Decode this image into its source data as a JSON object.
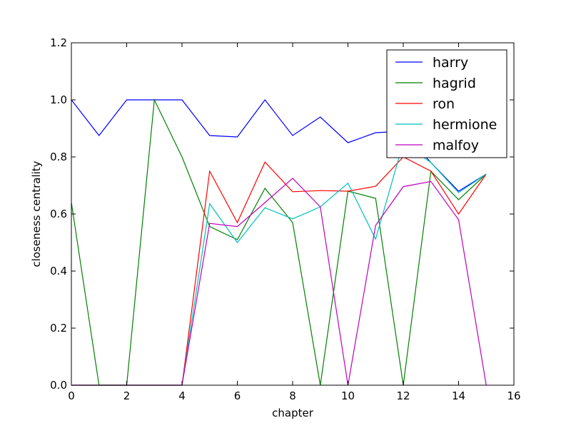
{
  "chart_data": {
    "type": "line",
    "xlabel": "chapter",
    "ylabel": "closeness centrality",
    "xlim": [
      0,
      16
    ],
    "ylim": [
      0,
      1.2
    ],
    "xticks": [
      0,
      2,
      4,
      6,
      8,
      10,
      12,
      14,
      16
    ],
    "yticks": [
      0.0,
      0.2,
      0.4,
      0.6,
      0.8,
      1.0,
      1.2
    ],
    "grid": false,
    "legend_position": "top-right",
    "x": [
      0,
      1,
      2,
      3,
      4,
      5,
      6,
      7,
      8,
      9,
      10,
      11,
      12,
      13,
      14,
      15
    ],
    "series": [
      {
        "name": "harry",
        "color": "#0000ff",
        "values": [
          1.0,
          0.875,
          1.0,
          1.0,
          1.0,
          0.875,
          0.87,
          1.0,
          0.875,
          0.94,
          0.85,
          0.885,
          0.89,
          0.78,
          0.68,
          0.74
        ]
      },
      {
        "name": "hagrid",
        "color": "#008000",
        "values": [
          0.64,
          0.0,
          0.0,
          1.0,
          0.8,
          0.556,
          0.51,
          0.69,
          0.57,
          0.0,
          0.68,
          0.655,
          0.0,
          0.75,
          0.65,
          0.74
        ]
      },
      {
        "name": "ron",
        "color": "#ff0000",
        "values": [
          0.0,
          0.0,
          0.0,
          0.0,
          0.0,
          0.75,
          0.57,
          0.782,
          0.678,
          0.682,
          0.68,
          0.697,
          0.8,
          0.75,
          0.6,
          0.74
        ]
      },
      {
        "name": "hermione",
        "color": "#00bfbf",
        "values": [
          0.0,
          0.0,
          0.0,
          0.0,
          0.0,
          0.636,
          0.5,
          0.622,
          0.583,
          0.625,
          0.708,
          0.512,
          0.85,
          0.78,
          0.675,
          0.74
        ]
      },
      {
        "name": "malfoy",
        "color": "#bf00bf",
        "values": [
          0.0,
          0.0,
          0.0,
          0.0,
          0.0,
          0.567,
          0.556,
          0.64,
          0.725,
          0.625,
          0.0,
          0.56,
          0.696,
          0.714,
          0.58,
          0.0
        ]
      }
    ]
  }
}
